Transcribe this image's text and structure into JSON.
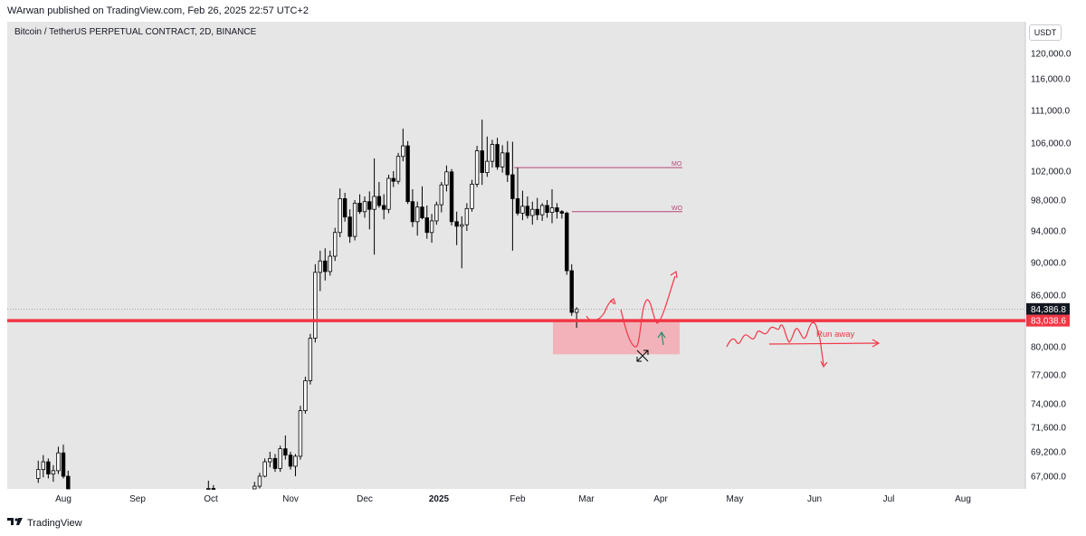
{
  "header": {
    "published": "WArwan published on TradingView.com, Feb 26, 2025 22:57 UTC+2"
  },
  "symbol": {
    "title": "Bitcoin / TetherUS PERPETUAL CONTRACT, 2D, BINANCE"
  },
  "unit": "USDT",
  "footer": {
    "logo_text": "TradingView"
  },
  "chart_data": {
    "type": "candlestick",
    "series_name": "",
    "y_ticks": [
      "120,000.0",
      "116,000.0",
      "111,000.0",
      "106,000.0",
      "102,000.0",
      "98,000.0",
      "94,000.0",
      "90,000.0",
      "86,000.0",
      "80,000.0",
      "77,000.0",
      "74,000.0",
      "71,600.0",
      "69,200.0",
      "67,000.0"
    ],
    "x_ticks": [
      {
        "label": "Aug",
        "bold": false
      },
      {
        "label": "Sep",
        "bold": false
      },
      {
        "label": "Oct",
        "bold": false
      },
      {
        "label": "Nov",
        "bold": false
      },
      {
        "label": "Dec",
        "bold": false
      },
      {
        "label": "2025",
        "bold": true
      },
      {
        "label": "Feb",
        "bold": false
      },
      {
        "label": "Mar",
        "bold": false
      },
      {
        "label": "Apr",
        "bold": false
      },
      {
        "label": "May",
        "bold": false
      },
      {
        "label": "Jun",
        "bold": false
      },
      {
        "label": "Jul",
        "bold": false
      },
      {
        "label": "Aug",
        "bold": false
      }
    ],
    "price_labels": [
      {
        "value": "84,386.8",
        "color": "#131722"
      },
      {
        "value": "83,038.6",
        "color": "#f23645"
      }
    ],
    "levels": [
      {
        "label": "MO",
        "price": 102500
      },
      {
        "label": "WO",
        "price": 96500
      }
    ],
    "support_price": 83038.6,
    "current_price": 84386.8,
    "zone": {
      "top": 83000,
      "bottom": 79200
    },
    "annotation": "Run away",
    "colors": {
      "bull": "#ffffff",
      "bear": "#000000",
      "support": "#f23645",
      "zone": "#f2a9b0",
      "levels": "#b5477a",
      "drawing": "#f23645"
    },
    "candles": [
      [
        null,
        "Jul 22",
        66800,
        68400,
        66400,
        67600
      ],
      [
        null,
        "Jul 24",
        67600,
        68900,
        66900,
        68300
      ],
      [
        null,
        "Jul 26",
        68300,
        68600,
        66800,
        67200
      ],
      [
        null,
        "Jul 28",
        67200,
        68000,
        66500,
        67500
      ],
      [
        null,
        "Jul 30",
        67500,
        69700,
        67200,
        69100
      ],
      [
        null,
        "Aug 1",
        69100,
        69900,
        66800,
        67000
      ],
      [
        null,
        "Aug 3",
        67000,
        67500,
        65000,
        65400
      ],
      [
        null,
        "Sep 30",
        64800,
        66600,
        64200,
        65900
      ],
      [
        null,
        "Oct 2",
        65900,
        66200,
        64100,
        64600
      ],
      [
        null,
        "Oct 18",
        64900,
        66500,
        64500,
        66100
      ],
      [
        null,
        "Oct 20",
        66100,
        67300,
        65900,
        67000
      ],
      [
        null,
        "Oct 22",
        67000,
        68600,
        66900,
        68300
      ],
      [
        null,
        "Oct 24",
        68300,
        69200,
        67800,
        68600
      ],
      [
        null,
        "Oct 26",
        68600,
        69000,
        67400,
        67700
      ],
      [
        null,
        "Oct 28",
        67700,
        69800,
        67400,
        69500
      ],
      [
        null,
        "Oct 30",
        69500,
        70800,
        68500,
        68900
      ],
      [
        null,
        "Nov 1",
        68900,
        69200,
        67600,
        67900
      ],
      [
        null,
        "Nov 3",
        67900,
        69000,
        67000,
        68800
      ],
      [
        null,
        "Nov 5",
        68800,
        73800,
        68500,
        73300
      ],
      [
        null,
        "Nov 7",
        73300,
        76800,
        73000,
        76400
      ],
      [
        null,
        "Nov 9",
        76400,
        81500,
        76000,
        81000
      ],
      [
        null,
        "Nov 11",
        81000,
        89800,
        80500,
        88800
      ],
      [
        null,
        "Nov 13",
        88800,
        91500,
        86500,
        90200
      ],
      [
        null,
        "Nov 15",
        90200,
        91800,
        87800,
        88900
      ],
      [
        null,
        "Nov 17",
        88900,
        91500,
        88400,
        90800
      ],
      [
        null,
        "Nov 19",
        90800,
        94400,
        90200,
        93800
      ],
      [
        null,
        "Nov 21",
        93800,
        99600,
        93200,
        98200
      ],
      [
        null,
        "Nov 23",
        98200,
        99000,
        95200,
        95800
      ],
      [
        null,
        "Nov 25",
        95800,
        96800,
        92500,
        93300
      ],
      [
        null,
        "Nov 27",
        93300,
        98000,
        92800,
        97600
      ],
      [
        null,
        "Nov 29",
        97600,
        98800,
        96200,
        96500
      ],
      [
        null,
        "Dec 1",
        96500,
        98500,
        95700,
        97800
      ],
      [
        null,
        "Dec 3",
        97800,
        99200,
        94200,
        96800
      ],
      [
        null,
        "Dec 5",
        96800,
        103800,
        91000,
        98500
      ],
      [
        null,
        "Dec 7",
        98500,
        100500,
        97000,
        97300
      ],
      [
        null,
        "Dec 9",
        97300,
        98800,
        95500,
        96800
      ],
      [
        null,
        "Dec 11",
        96800,
        101500,
        96300,
        101000
      ],
      [
        null,
        "Dec 13",
        101000,
        102000,
        99800,
        100600
      ],
      [
        null,
        "Dec 15",
        100600,
        104600,
        100200,
        104100
      ],
      [
        null,
        "Dec 17",
        104100,
        108200,
        103400,
        105600
      ],
      [
        null,
        "Dec 19",
        105600,
        106300,
        97500,
        97800
      ],
      [
        null,
        "Dec 21",
        97800,
        99500,
        94500,
        95200
      ],
      [
        null,
        "Dec 23",
        95200,
        97800,
        93400,
        97100
      ],
      [
        null,
        "Dec 25",
        97100,
        99900,
        95500,
        95700
      ],
      [
        null,
        "Dec 27",
        95700,
        97300,
        93000,
        93800
      ],
      [
        null,
        "Dec 29",
        93800,
        96200,
        92500,
        95300
      ],
      [
        null,
        "Dec 31",
        95300,
        97800,
        94800,
        97400
      ],
      [
        null,
        "Jan 2",
        97400,
        100500,
        96400,
        100100
      ],
      [
        null,
        "Jan 4",
        100100,
        102800,
        99200,
        101900
      ],
      [
        null,
        "Jan 6",
        101900,
        102300,
        94700,
        95200
      ],
      [
        null,
        "Jan 8",
        95200,
        96500,
        92200,
        94600
      ],
      [
        null,
        "Jan 10",
        94600,
        95900,
        89300,
        94800
      ],
      [
        null,
        "Jan 12",
        94800,
        97600,
        94000,
        96900
      ],
      [
        null,
        "Jan 14",
        96900,
        100800,
        96500,
        100200
      ],
      [
        null,
        "Jan 16",
        100200,
        105600,
        99800,
        104900
      ],
      [
        null,
        "Jan 18",
        104900,
        109600,
        100100,
        101800
      ],
      [
        null,
        "Jan 20",
        101800,
        107000,
        101200,
        103400
      ],
      [
        null,
        "Jan 22",
        103400,
        106500,
        102500,
        105800
      ],
      [
        null,
        "Jan 24",
        105800,
        106800,
        102200,
        102600
      ],
      [
        null,
        "Jan 26",
        102600,
        105700,
        101800,
        104600
      ],
      [
        null,
        "Jan 28",
        104600,
        106300,
        100500,
        101500
      ],
      [
        null,
        "Jan 30",
        101500,
        106200,
        91500,
        98200
      ],
      [
        null,
        "Feb 1",
        98200,
        102500,
        96000,
        96300
      ],
      [
        null,
        "Feb 3",
        96300,
        99300,
        95400,
        97200
      ],
      [
        null,
        "Feb 5",
        97200,
        98500,
        95600,
        96000
      ],
      [
        null,
        "Feb 7",
        96000,
        97800,
        94800,
        96800
      ],
      [
        null,
        "Feb 9",
        96800,
        98300,
        95400,
        96100
      ],
      [
        null,
        "Feb 11",
        96100,
        97600,
        95300,
        97300
      ],
      [
        null,
        "Feb 13",
        97300,
        98000,
        95700,
        96400
      ],
      [
        null,
        "Feb 15",
        96400,
        99500,
        95000,
        97000
      ],
      [
        null,
        "Feb 17",
        97000,
        97600,
        95600,
        96500
      ],
      [
        null,
        "Feb 19",
        96500,
        96700,
        95600,
        96300
      ],
      [
        null,
        "Feb 21",
        96300,
        96500,
        88500,
        89000
      ],
      [
        null,
        "Feb 23",
        89000,
        89800,
        83600,
        84000
      ],
      [
        null,
        "Feb 25",
        84000,
        84600,
        82200,
        84386.8
      ]
    ]
  }
}
